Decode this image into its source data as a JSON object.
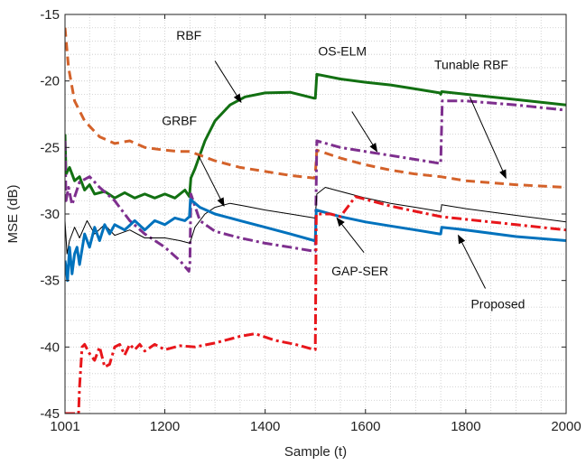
{
  "chart_data": {
    "type": "line",
    "title": "",
    "xlabel": "Sample (t)",
    "ylabel": "MSE (dB)",
    "xlim": [
      1001,
      2000
    ],
    "ylim": [
      -45,
      -15
    ],
    "xticks": [
      1001,
      1200,
      1400,
      1600,
      1800,
      2000
    ],
    "yticks": [
      -45,
      -40,
      -35,
      -30,
      -25,
      -20,
      -15
    ],
    "grid": "major and minor, dotted",
    "series": [
      {
        "name": "RBF",
        "color": "#127012",
        "style": "solid",
        "width": "thick",
        "points": [
          [
            1001,
            -24
          ],
          [
            1003,
            -27
          ],
          [
            1010,
            -26.5
          ],
          [
            1020,
            -27.5
          ],
          [
            1030,
            -27.2
          ],
          [
            1040,
            -28.2
          ],
          [
            1050,
            -27.8
          ],
          [
            1060,
            -28.5
          ],
          [
            1080,
            -28.3
          ],
          [
            1100,
            -28.8
          ],
          [
            1120,
            -28.4
          ],
          [
            1140,
            -28.8
          ],
          [
            1160,
            -28.5
          ],
          [
            1180,
            -28.8
          ],
          [
            1200,
            -28.5
          ],
          [
            1220,
            -28.8
          ],
          [
            1240,
            -28.2
          ],
          [
            1249,
            -28.7
          ],
          [
            1252,
            -27.3
          ],
          [
            1260,
            -26.6
          ],
          [
            1280,
            -24.5
          ],
          [
            1300,
            -23
          ],
          [
            1330,
            -21.8
          ],
          [
            1360,
            -21.2
          ],
          [
            1400,
            -20.9
          ],
          [
            1450,
            -20.85
          ],
          [
            1498,
            -21.3
          ],
          [
            1500,
            -21.3
          ],
          [
            1503,
            -19.5
          ],
          [
            1550,
            -19.85
          ],
          [
            1600,
            -20.1
          ],
          [
            1650,
            -20.3
          ],
          [
            1700,
            -20.6
          ],
          [
            1748,
            -20.9
          ],
          [
            1750,
            -21
          ],
          [
            1752,
            -20.8
          ],
          [
            1800,
            -21
          ],
          [
            1900,
            -21.4
          ],
          [
            2000,
            -21.8
          ]
        ]
      },
      {
        "name": "Tunable RBF",
        "color": "#d4622a",
        "style": "dashed",
        "width": "thick",
        "points": [
          [
            1001,
            -16
          ],
          [
            1008,
            -19
          ],
          [
            1020,
            -21.5
          ],
          [
            1040,
            -23
          ],
          [
            1070,
            -24.2
          ],
          [
            1100,
            -24.7
          ],
          [
            1130,
            -24.5
          ],
          [
            1160,
            -25
          ],
          [
            1200,
            -25.2
          ],
          [
            1230,
            -25.3
          ],
          [
            1250,
            -25.3
          ],
          [
            1300,
            -26
          ],
          [
            1350,
            -26.5
          ],
          [
            1400,
            -26.8
          ],
          [
            1450,
            -27.1
          ],
          [
            1498,
            -27.3
          ],
          [
            1500,
            -27
          ],
          [
            1503,
            -25.2
          ],
          [
            1550,
            -25.8
          ],
          [
            1600,
            -26.3
          ],
          [
            1650,
            -26.7
          ],
          [
            1700,
            -27
          ],
          [
            1750,
            -27.2
          ],
          [
            1800,
            -27.5
          ],
          [
            1900,
            -27.8
          ],
          [
            2000,
            -28
          ]
        ]
      },
      {
        "name": "OS-ELM",
        "color": "#7e2f8e",
        "style": "dashdot",
        "width": "thick",
        "points": [
          [
            1001,
            -24.5
          ],
          [
            1003,
            -29
          ],
          [
            1008,
            -28
          ],
          [
            1015,
            -29.3
          ],
          [
            1030,
            -27.6
          ],
          [
            1050,
            -27.2
          ],
          [
            1070,
            -28
          ],
          [
            1100,
            -29
          ],
          [
            1130,
            -30.5
          ],
          [
            1160,
            -31.5
          ],
          [
            1200,
            -32.5
          ],
          [
            1230,
            -33.5
          ],
          [
            1248,
            -34.3
          ],
          [
            1250,
            -33.8
          ],
          [
            1252,
            -28.5
          ],
          [
            1270,
            -30.5
          ],
          [
            1300,
            -31.3
          ],
          [
            1350,
            -31.8
          ],
          [
            1400,
            -32.2
          ],
          [
            1450,
            -32.5
          ],
          [
            1498,
            -32.8
          ],
          [
            1500,
            -32.8
          ],
          [
            1503,
            -24.5
          ],
          [
            1550,
            -25
          ],
          [
            1600,
            -25.3
          ],
          [
            1650,
            -25.6
          ],
          [
            1700,
            -25.9
          ],
          [
            1748,
            -26.2
          ],
          [
            1750,
            -26.2
          ],
          [
            1753,
            -21.5
          ],
          [
            1800,
            -21.5
          ],
          [
            1900,
            -21.8
          ],
          [
            2000,
            -22.2
          ]
        ]
      },
      {
        "name": "GRBF",
        "color": "#000000",
        "style": "solid",
        "width": "thin",
        "points": [
          [
            1001,
            -30.5
          ],
          [
            1005,
            -33
          ],
          [
            1010,
            -32
          ],
          [
            1020,
            -31
          ],
          [
            1030,
            -31.8
          ],
          [
            1045,
            -30.5
          ],
          [
            1060,
            -31.5
          ],
          [
            1080,
            -30.8
          ],
          [
            1100,
            -31.6
          ],
          [
            1130,
            -31.2
          ],
          [
            1160,
            -31.8
          ],
          [
            1200,
            -31.8
          ],
          [
            1230,
            -32
          ],
          [
            1250,
            -32.2
          ],
          [
            1260,
            -31
          ],
          [
            1280,
            -30
          ],
          [
            1300,
            -29.5
          ],
          [
            1330,
            -29.2
          ],
          [
            1360,
            -29.4
          ],
          [
            1400,
            -29.7
          ],
          [
            1450,
            -30
          ],
          [
            1498,
            -30.3
          ],
          [
            1500,
            -30.3
          ],
          [
            1503,
            -28.5
          ],
          [
            1520,
            -28
          ],
          [
            1550,
            -28.3
          ],
          [
            1600,
            -28.8
          ],
          [
            1650,
            -29.2
          ],
          [
            1700,
            -29.5
          ],
          [
            1748,
            -29.8
          ],
          [
            1750,
            -29.8
          ],
          [
            1752,
            -29.3
          ],
          [
            1800,
            -29.6
          ],
          [
            1900,
            -30.1
          ],
          [
            2000,
            -30.6
          ]
        ]
      },
      {
        "name": "Proposed",
        "color": "#0072bd",
        "style": "solid",
        "width": "thick",
        "points": [
          [
            1001,
            -33.5
          ],
          [
            1003,
            -34
          ],
          [
            1006,
            -35
          ],
          [
            1010,
            -32.5
          ],
          [
            1015,
            -34.5
          ],
          [
            1020,
            -33
          ],
          [
            1025,
            -32.5
          ],
          [
            1030,
            -33.8
          ],
          [
            1040,
            -31.5
          ],
          [
            1050,
            -32.5
          ],
          [
            1060,
            -31
          ],
          [
            1070,
            -32
          ],
          [
            1080,
            -30.8
          ],
          [
            1090,
            -31.5
          ],
          [
            1100,
            -30.8
          ],
          [
            1120,
            -31.2
          ],
          [
            1140,
            -30.5
          ],
          [
            1160,
            -31.2
          ],
          [
            1180,
            -30.5
          ],
          [
            1200,
            -30.8
          ],
          [
            1220,
            -30.3
          ],
          [
            1240,
            -30.5
          ],
          [
            1249,
            -30.2
          ],
          [
            1251,
            -28.9
          ],
          [
            1270,
            -29.5
          ],
          [
            1300,
            -30
          ],
          [
            1350,
            -30.5
          ],
          [
            1400,
            -31
          ],
          [
            1450,
            -31.5
          ],
          [
            1498,
            -32
          ],
          [
            1500,
            -32
          ],
          [
            1502,
            -29.7
          ],
          [
            1550,
            -30.2
          ],
          [
            1600,
            -30.6
          ],
          [
            1650,
            -30.9
          ],
          [
            1700,
            -31.2
          ],
          [
            1748,
            -31.5
          ],
          [
            1750,
            -31.5
          ],
          [
            1752,
            -31
          ],
          [
            1800,
            -31.2
          ],
          [
            1900,
            -31.7
          ],
          [
            2000,
            -32
          ]
        ]
      },
      {
        "name": "GAP-SER",
        "color": "#e8161b",
        "style": "dashdot",
        "width": "thick",
        "points": [
          [
            1001,
            -45
          ],
          [
            1028,
            -45
          ],
          [
            1030,
            -43
          ],
          [
            1035,
            -40
          ],
          [
            1040,
            -39.8
          ],
          [
            1050,
            -40.5
          ],
          [
            1060,
            -41
          ],
          [
            1070,
            -40
          ],
          [
            1080,
            -41.5
          ],
          [
            1090,
            -41.3
          ],
          [
            1100,
            -40
          ],
          [
            1110,
            -39.8
          ],
          [
            1120,
            -40.6
          ],
          [
            1130,
            -39.8
          ],
          [
            1140,
            -40.2
          ],
          [
            1150,
            -39.8
          ],
          [
            1160,
            -40.3
          ],
          [
            1180,
            -39.8
          ],
          [
            1200,
            -40.2
          ],
          [
            1230,
            -39.9
          ],
          [
            1260,
            -40
          ],
          [
            1300,
            -39.7
          ],
          [
            1330,
            -39.4
          ],
          [
            1350,
            -39.2
          ],
          [
            1380,
            -39
          ],
          [
            1420,
            -39.5
          ],
          [
            1460,
            -39.8
          ],
          [
            1498,
            -40.2
          ],
          [
            1500,
            -40.2
          ],
          [
            1502,
            -30
          ],
          [
            1530,
            -30
          ],
          [
            1550,
            -30.2
          ],
          [
            1580,
            -28.7
          ],
          [
            1600,
            -28.9
          ],
          [
            1650,
            -29.4
          ],
          [
            1700,
            -29.8
          ],
          [
            1750,
            -30.2
          ],
          [
            1800,
            -30.4
          ],
          [
            1900,
            -30.8
          ],
          [
            2000,
            -31.2
          ]
        ]
      }
    ],
    "annotations": [
      {
        "text": "RBF",
        "text_at": [
          1248,
          -16.9
        ],
        "arrow_from": [
          1300,
          -18.5
        ],
        "arrow_to": [
          1352,
          -21.6
        ]
      },
      {
        "text": "OS-ELM",
        "text_at": [
          1554,
          -18.1
        ],
        "arrow_from": [
          1573,
          -22.3
        ],
        "arrow_to": [
          1623,
          -25.3
        ]
      },
      {
        "text": "Tunable RBF",
        "text_at": [
          1811,
          -19.1
        ],
        "arrow_from": [
          1808,
          -21.2
        ],
        "arrow_to": [
          1880,
          -27.3
        ]
      },
      {
        "text": "GRBF",
        "text_at": [
          1229,
          -23.3
        ],
        "arrow_from": [
          1267,
          -25.6
        ],
        "arrow_to": [
          1318,
          -29.4
        ]
      },
      {
        "text": "GAP-SER",
        "text_at": [
          1589,
          -34.6
        ],
        "arrow_from": [
          1597,
          -32.9
        ],
        "arrow_to": [
          1543,
          -30.3
        ]
      },
      {
        "text": "Proposed",
        "text_at": [
          1864,
          -37.1
        ],
        "arrow_from": [
          1839,
          -35.6
        ],
        "arrow_to": [
          1785,
          -31.6
        ]
      }
    ]
  }
}
